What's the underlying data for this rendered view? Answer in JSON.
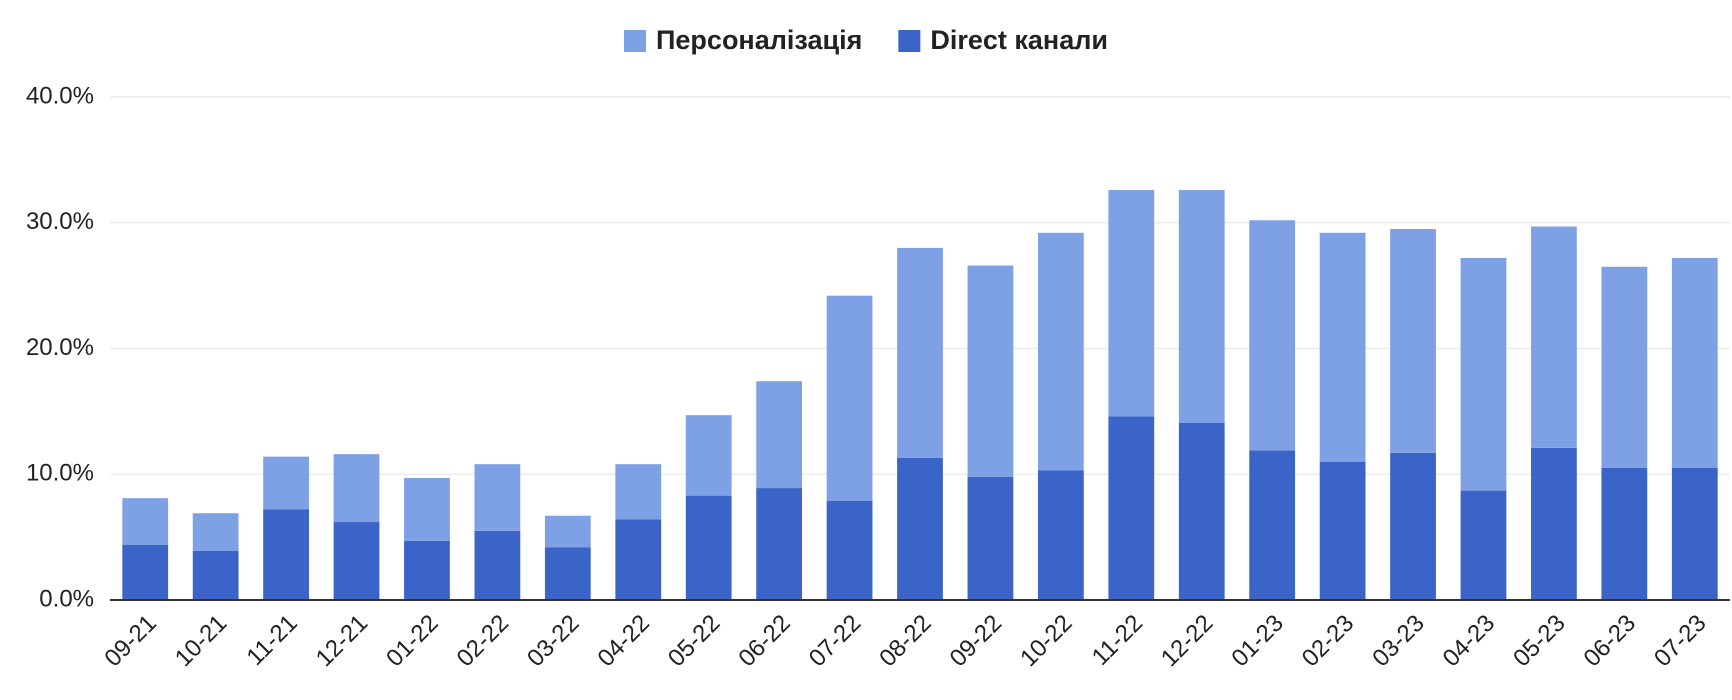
{
  "chart_data": {
    "type": "stacked_bar",
    "categories": [
      "09-21",
      "10-21",
      "11-21",
      "12-21",
      "01-22",
      "02-22",
      "03-22",
      "04-22",
      "05-22",
      "06-22",
      "07-22",
      "08-22",
      "09-22",
      "10-22",
      "11-22",
      "12-22",
      "01-23",
      "02-23",
      "03-23",
      "04-23",
      "05-23",
      "06-23",
      "07-23"
    ],
    "series": [
      {
        "name": "Персоналізація",
        "color": "#7ea1e6",
        "values": [
          3.7,
          3.0,
          4.2,
          5.4,
          5.0,
          5.3,
          2.5,
          4.4,
          6.4,
          8.5,
          16.3,
          16.7,
          16.8,
          18.9,
          18.0,
          18.5,
          18.3,
          18.2,
          17.8,
          18.5,
          17.6,
          16.0,
          16.7
        ]
      },
      {
        "name": "Direct канали",
        "color": "#3a64c8",
        "values": [
          4.4,
          3.9,
          7.2,
          6.2,
          4.7,
          5.5,
          4.2,
          6.4,
          8.3,
          8.9,
          7.9,
          11.3,
          9.8,
          10.3,
          14.6,
          14.1,
          11.9,
          11.0,
          11.7,
          8.7,
          12.1,
          10.5,
          10.5
        ]
      }
    ],
    "ylim": [
      0,
      40
    ],
    "yticks": [
      {
        "value": 0,
        "label": "0.0%"
      },
      {
        "value": 10,
        "label": "10.0%"
      },
      {
        "value": 20,
        "label": "20.0%"
      },
      {
        "value": 30,
        "label": "30.0%"
      },
      {
        "value": 40,
        "label": "40.0%"
      }
    ],
    "grid": true,
    "legend": "top"
  }
}
